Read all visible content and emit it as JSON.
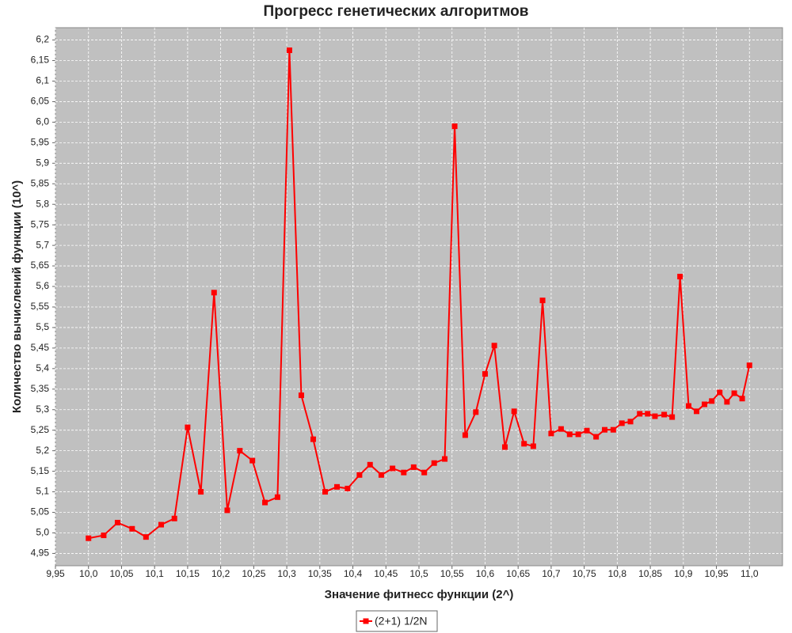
{
  "chart_data": {
    "type": "line",
    "title": "Прогресс генетических алгоритмов",
    "x_label": "Значение фитнесс функции (2^)",
    "y_label": "Количество вычислений функции (10^)",
    "xlim": [
      9.95,
      11.05
    ],
    "ylim": [
      4.92,
      6.23
    ],
    "grid": true,
    "legend": "bottom",
    "xticks": [
      {
        "value": 9.95,
        "label": "9,95"
      },
      {
        "value": 10.0,
        "label": "10,0"
      },
      {
        "value": 10.05,
        "label": "10,05"
      },
      {
        "value": 10.1,
        "label": "10,1"
      },
      {
        "value": 10.15,
        "label": "10,15"
      },
      {
        "value": 10.2,
        "label": "10,2"
      },
      {
        "value": 10.25,
        "label": "10,25"
      },
      {
        "value": 10.3,
        "label": "10,3"
      },
      {
        "value": 10.35,
        "label": "10,35"
      },
      {
        "value": 10.4,
        "label": "10,4"
      },
      {
        "value": 10.45,
        "label": "10,45"
      },
      {
        "value": 10.5,
        "label": "10,5"
      },
      {
        "value": 10.55,
        "label": "10,55"
      },
      {
        "value": 10.6,
        "label": "10,6"
      },
      {
        "value": 10.65,
        "label": "10,65"
      },
      {
        "value": 10.7,
        "label": "10,7"
      },
      {
        "value": 10.75,
        "label": "10,75"
      },
      {
        "value": 10.8,
        "label": "10,8"
      },
      {
        "value": 10.85,
        "label": "10,85"
      },
      {
        "value": 10.9,
        "label": "10,9"
      },
      {
        "value": 10.95,
        "label": "10,95"
      },
      {
        "value": 11.0,
        "label": "11,0"
      }
    ],
    "yticks": [
      {
        "value": 4.95,
        "label": "4,95"
      },
      {
        "value": 5.0,
        "label": "5,0"
      },
      {
        "value": 5.05,
        "label": "5,05"
      },
      {
        "value": 5.1,
        "label": "5,1"
      },
      {
        "value": 5.15,
        "label": "5,15"
      },
      {
        "value": 5.2,
        "label": "5,2"
      },
      {
        "value": 5.25,
        "label": "5,25"
      },
      {
        "value": 5.3,
        "label": "5,3"
      },
      {
        "value": 5.35,
        "label": "5,35"
      },
      {
        "value": 5.4,
        "label": "5,4"
      },
      {
        "value": 5.45,
        "label": "5,45"
      },
      {
        "value": 5.5,
        "label": "5,5"
      },
      {
        "value": 5.55,
        "label": "5,55"
      },
      {
        "value": 5.6,
        "label": "5,6"
      },
      {
        "value": 5.65,
        "label": "5,65"
      },
      {
        "value": 5.7,
        "label": "5,7"
      },
      {
        "value": 5.75,
        "label": "5,75"
      },
      {
        "value": 5.8,
        "label": "5,8"
      },
      {
        "value": 5.85,
        "label": "5,85"
      },
      {
        "value": 5.9,
        "label": "5,9"
      },
      {
        "value": 5.95,
        "label": "5,95"
      },
      {
        "value": 6.0,
        "label": "6,0"
      },
      {
        "value": 6.05,
        "label": "6,05"
      },
      {
        "value": 6.1,
        "label": "6,1"
      },
      {
        "value": 6.15,
        "label": "6,15"
      },
      {
        "value": 6.2,
        "label": "6,2"
      }
    ],
    "x": [
      10.0,
      10.023,
      10.044,
      10.066,
      10.087,
      10.11,
      10.13,
      10.15,
      10.17,
      10.19,
      10.21,
      10.229,
      10.248,
      10.267,
      10.286,
      10.304,
      10.322,
      10.34,
      10.358,
      10.376,
      10.392,
      10.41,
      10.426,
      10.443,
      10.46,
      10.477,
      10.492,
      10.508,
      10.523,
      10.539,
      10.554,
      10.57,
      10.586,
      10.6,
      10.614,
      10.63,
      10.644,
      10.659,
      10.673,
      10.687,
      10.7,
      10.715,
      10.728,
      10.741,
      10.754,
      10.768,
      10.781,
      10.794,
      10.807,
      10.82,
      10.834,
      10.846,
      10.857,
      10.871,
      10.883,
      10.895,
      10.908,
      10.92,
      10.932,
      10.943,
      10.955,
      10.966,
      10.977,
      10.989,
      11.0
    ],
    "series": [
      {
        "name": "(2+1) 1/2N",
        "color": "#ff0000",
        "values": [
          4.987,
          4.994,
          5.025,
          5.01,
          4.99,
          5.02,
          5.035,
          5.257,
          5.1,
          5.585,
          5.055,
          5.2,
          5.176,
          5.074,
          5.087,
          6.175,
          5.335,
          5.228,
          5.1,
          5.112,
          5.108,
          5.141,
          5.166,
          5.141,
          5.157,
          5.147,
          5.16,
          5.147,
          5.17,
          5.18,
          5.99,
          5.238,
          5.294,
          5.387,
          5.456,
          5.209,
          5.296,
          5.217,
          5.211,
          5.566,
          5.242,
          5.253,
          5.24,
          5.24,
          5.249,
          5.234,
          5.251,
          5.251,
          5.267,
          5.271,
          5.29,
          5.29,
          5.284,
          5.288,
          5.282,
          5.624,
          5.309,
          5.296,
          5.313,
          5.321,
          5.342,
          5.319,
          5.34,
          5.327,
          5.408
        ]
      }
    ]
  }
}
